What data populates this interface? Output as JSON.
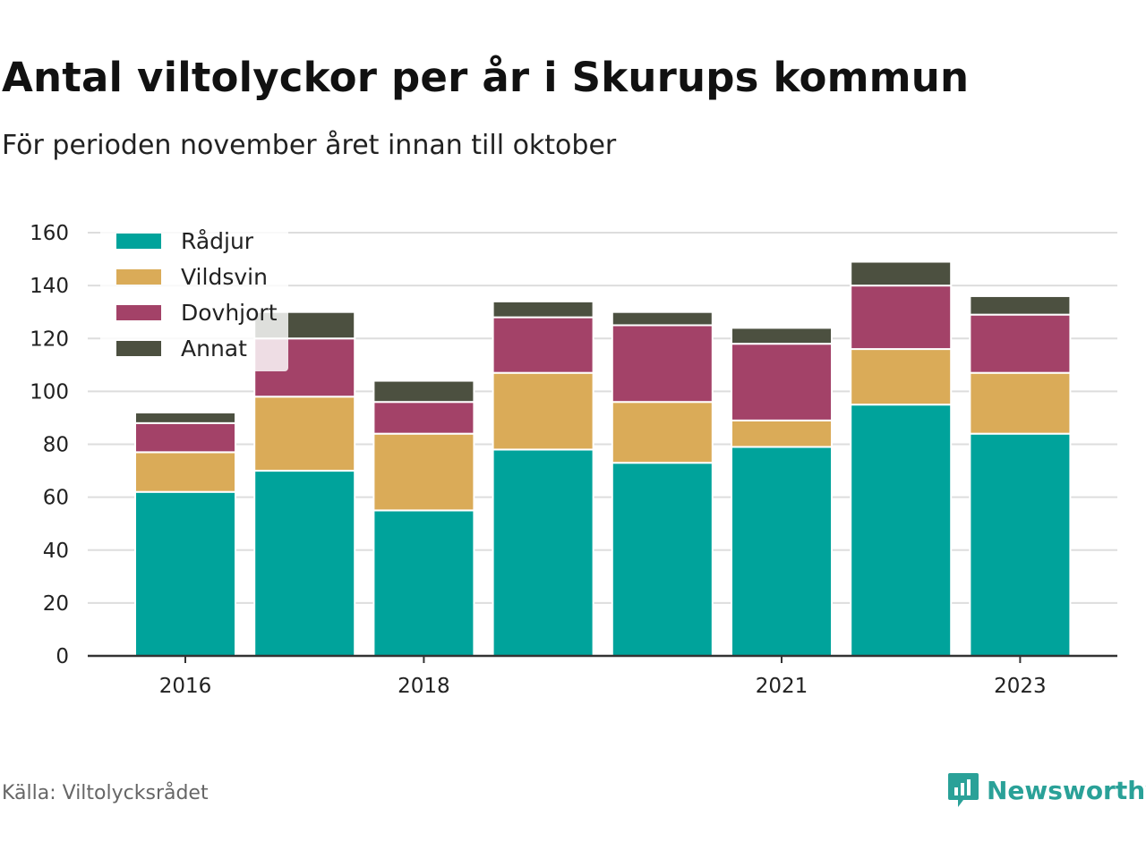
{
  "title": "Antal viltolyckor per år i Skurups kommun",
  "subtitle": "För perioden november året innan till oktober",
  "source": "Källa: Viltolycksrådet",
  "brand": "Newsworthy",
  "colors": {
    "Rådjur": "#00a39b",
    "Vildsvin": "#daab58",
    "Dovhjort": "#a34268",
    "Annat": "#4c5040"
  },
  "chart_data": {
    "type": "bar",
    "stacked": true,
    "categories": [
      "2016",
      "2017",
      "2018",
      "2019",
      "2020",
      "2021",
      "2022",
      "2023"
    ],
    "x_tick_labels": [
      "2016",
      "",
      "2018",
      "",
      "",
      "2021",
      "",
      "2023"
    ],
    "series": [
      {
        "name": "Rådjur",
        "values": [
          62,
          70,
          55,
          78,
          73,
          79,
          95,
          84
        ]
      },
      {
        "name": "Vildsvin",
        "values": [
          15,
          28,
          29,
          29,
          23,
          10,
          21,
          23
        ]
      },
      {
        "name": "Dovhjort",
        "values": [
          11,
          22,
          12,
          21,
          29,
          29,
          24,
          22
        ]
      },
      {
        "name": "Annat",
        "values": [
          4,
          10,
          8,
          6,
          5,
          6,
          9,
          7
        ]
      }
    ],
    "ylim": [
      0,
      160
    ],
    "yticks": [
      0,
      20,
      40,
      60,
      80,
      100,
      120,
      140,
      160
    ],
    "grid": true,
    "legend": "top-left"
  }
}
